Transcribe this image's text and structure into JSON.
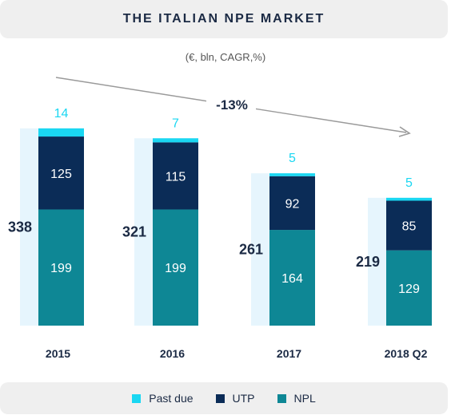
{
  "title": "THE ITALIAN NPE MARKET",
  "subtitle": "(€, bln, CAGR,%)",
  "cagr_label": "-13%",
  "colors": {
    "past_due": "#1ad7f2",
    "utp": "#0b2c57",
    "npl": "#0e8795",
    "total_bg": "#e6f5fd",
    "text_dark": "#1b2a44",
    "arrow": "#9a9a9a"
  },
  "legend": [
    {
      "name": "Past due",
      "color": "#1ad7f2"
    },
    {
      "name": "UTP",
      "color": "#0b2c57"
    },
    {
      "name": "NPL",
      "color": "#0e8795"
    }
  ],
  "chart_data": {
    "type": "bar",
    "stacked": true,
    "categories": [
      "2015",
      "2016",
      "2017",
      "2018 Q2"
    ],
    "totals": [
      338,
      321,
      261,
      219
    ],
    "series": [
      {
        "name": "NPL",
        "values": [
          199,
          199,
          164,
          129
        ]
      },
      {
        "name": "UTP",
        "values": [
          125,
          115,
          92,
          85
        ]
      },
      {
        "name": "Past due",
        "values": [
          14,
          7,
          5,
          5
        ]
      }
    ],
    "annotation": "-13%",
    "legend_position": "bottom",
    "grid": false
  }
}
